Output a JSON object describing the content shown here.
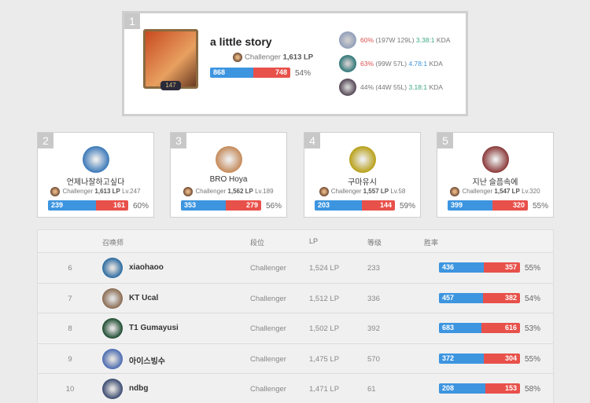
{
  "colors": {
    "win": "#3d95e0",
    "loss": "#e8504a",
    "kda_green": "#3ea882",
    "kda_blue": "#3d95e0",
    "wr_red": "#d9534f"
  },
  "top": {
    "rank": "1",
    "name": "a little story",
    "level": "147",
    "tier": "Challenger",
    "lp": "1,613 LP",
    "wins": 868,
    "losses": 748,
    "winrate": "54%",
    "champions": [
      {
        "wr": "60%",
        "record": "(197W 129L)",
        "kda": "3.38:1",
        "kda_label": "KDA",
        "color": "#8a9ab8"
      },
      {
        "wr": "63%",
        "record": "(99W 57L)",
        "kda": "4.78:1",
        "kda_label": "KDA",
        "color": "#1f6f70"
      },
      {
        "wr": "44%",
        "record": "(44W 55L)",
        "kda": "3.18:1",
        "kda_label": "KDA",
        "color": "#4a3a4a"
      }
    ]
  },
  "cards": [
    {
      "rank": "2",
      "name": "언제나잘하고싶다",
      "tier": "Challenger",
      "lp": "1,613 LP",
      "level": "Lv.247",
      "wins": 239,
      "losses": 161,
      "winrate": "60%",
      "color": "#3a78b8"
    },
    {
      "rank": "3",
      "name": "BRO Hoya",
      "tier": "Challenger",
      "lp": "1,562 LP",
      "level": "Lv.189",
      "wins": 353,
      "losses": 279,
      "winrate": "56%",
      "color": "#c58a5a"
    },
    {
      "rank": "4",
      "name": "구마유시",
      "tier": "Challenger",
      "lp": "1,557 LP",
      "level": "Lv.58",
      "wins": 203,
      "losses": 144,
      "winrate": "59%",
      "color": "#b8a018"
    },
    {
      "rank": "5",
      "name": "지난 슬픔속에",
      "tier": "Challenger",
      "lp": "1,547 LP",
      "level": "Lv.320",
      "wins": 399,
      "losses": 320,
      "winrate": "55%",
      "color": "#8a3838"
    }
  ],
  "table": {
    "headers": {
      "summoner": "召唤师",
      "tier": "段位",
      "lp": "LP",
      "level": "等级",
      "winrate": "胜率"
    },
    "rows": [
      {
        "rank": "6",
        "name": "xiaohaoo",
        "tier": "Challenger",
        "lp": "1,524 LP",
        "level": "233",
        "wins": 436,
        "losses": 357,
        "winrate": "55%",
        "color": "#2a6aa0"
      },
      {
        "rank": "7",
        "name": "KT Ucal",
        "tier": "Challenger",
        "lp": "1,512 LP",
        "level": "336",
        "wins": 457,
        "losses": 382,
        "winrate": "54%",
        "color": "#8a6a50"
      },
      {
        "rank": "8",
        "name": "T1 Gumayusi",
        "tier": "Challenger",
        "lp": "1,502 LP",
        "level": "392",
        "wins": 683,
        "losses": 616,
        "winrate": "53%",
        "color": "#1c4a30"
      },
      {
        "rank": "9",
        "name": "아이스빙수",
        "tier": "Challenger",
        "lp": "1,475 LP",
        "level": "570",
        "wins": 372,
        "losses": 304,
        "winrate": "55%",
        "color": "#4a6ab0"
      },
      {
        "rank": "10",
        "name": "ndbg",
        "tier": "Challenger",
        "lp": "1,471 LP",
        "level": "61",
        "wins": 208,
        "losses": 153,
        "winrate": "58%",
        "color": "#3a4a70"
      }
    ]
  }
}
